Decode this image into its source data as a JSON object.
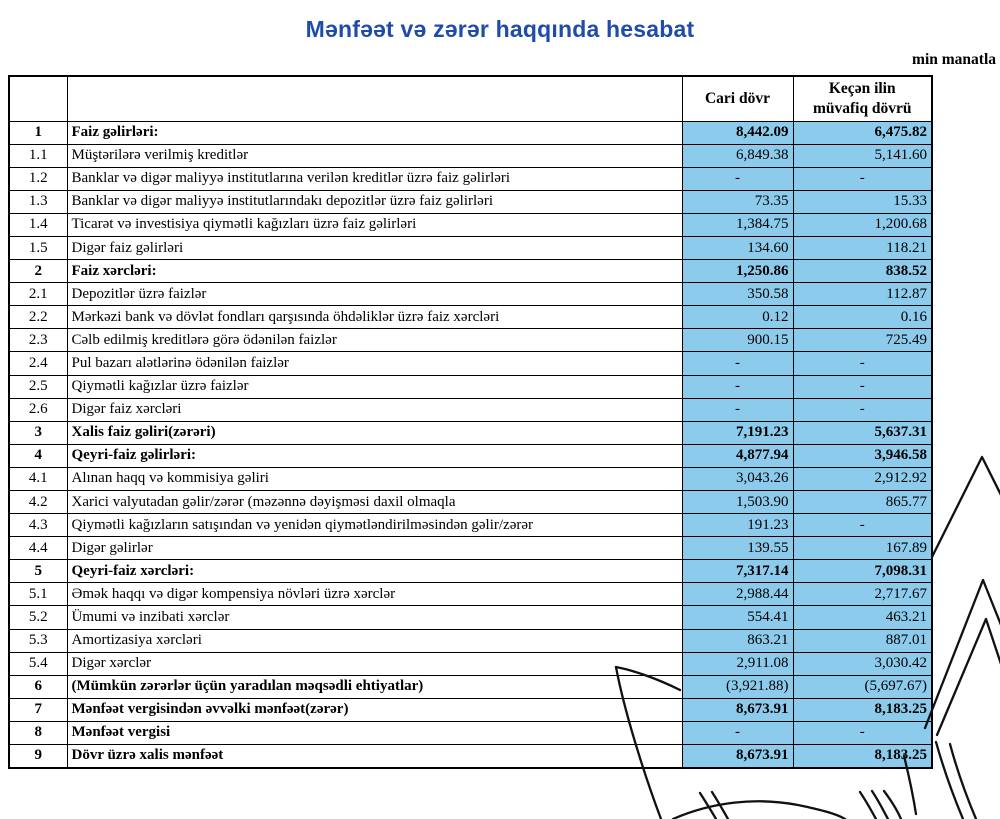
{
  "title": "Mənfəət və zərər haqqında hesabat",
  "unit_note": "min manatla",
  "colors": {
    "title_blue": "#1f4ca8",
    "cell_fill_blue": "#8dcbec",
    "border": "#000000"
  },
  "table": {
    "headers": {
      "current_period": "Cari dövr",
      "previous_period_line1": "Keçən ilin",
      "previous_period_line2": "müvafiq dövrü"
    },
    "rows": [
      {
        "num": "1",
        "label": "Faiz gəlirləri:",
        "cur": "8,442.09",
        "prev": "6,475.82",
        "section": true,
        "values_bold": true
      },
      {
        "num": "1.1",
        "label": "Müştərilərə verilmiş kreditlər",
        "cur": "6,849.38",
        "prev": "5,141.60",
        "section": false,
        "values_bold": false
      },
      {
        "num": "1.2",
        "label": "Banklar və digər maliyyə institutlarına verilən kreditlər üzrə faiz gəlirləri",
        "cur": "-",
        "prev": "-",
        "section": false,
        "values_bold": false
      },
      {
        "num": "1.3",
        "label": "Banklar və digər maliyyə institutlarındakı depozitlər üzrə faiz gəlirləri",
        "cur": "73.35",
        "prev": "15.33",
        "section": false,
        "values_bold": false
      },
      {
        "num": "1.4",
        "label": "Ticarət və investisiya qiymətli kağızları üzrə faiz gəlirləri",
        "cur": "1,384.75",
        "prev": "1,200.68",
        "section": false,
        "values_bold": false
      },
      {
        "num": "1.5",
        "label": "Digər faiz gəlirləri",
        "cur": "134.60",
        "prev": "118.21",
        "section": false,
        "values_bold": false
      },
      {
        "num": "2",
        "label": "Faiz xərcləri:",
        "cur": "1,250.86",
        "prev": "838.52",
        "section": true,
        "values_bold": true
      },
      {
        "num": "2.1",
        "label": "Depozitlər üzrə faizlər",
        "cur": "350.58",
        "prev": "112.87",
        "section": false,
        "values_bold": false
      },
      {
        "num": "2.2",
        "label": "Mərkəzi bank və dövlət fondları qarşısında öhdəliklər üzrə faiz xərcləri",
        "cur": "0.12",
        "prev": "0.16",
        "section": false,
        "values_bold": false
      },
      {
        "num": "2.3",
        "label": "Cəlb edilmiş kreditlərə görə ödənilən faizlər",
        "cur": "900.15",
        "prev": "725.49",
        "section": false,
        "values_bold": false
      },
      {
        "num": "2.4",
        "label": "Pul bazarı alətlərinə ödənilən faizlər",
        "cur": "-",
        "prev": "-",
        "section": false,
        "values_bold": false
      },
      {
        "num": "2.5",
        "label": "Qiymətli kağızlar üzrə faizlər",
        "cur": "-",
        "prev": "-",
        "section": false,
        "values_bold": false
      },
      {
        "num": "2.6",
        "label": "Digər faiz xərcləri",
        "cur": "-",
        "prev": "-",
        "section": false,
        "values_bold": false
      },
      {
        "num": "3",
        "label": "Xalis faiz gəliri(zərəri)",
        "cur": "7,191.23",
        "prev": "5,637.31",
        "section": true,
        "values_bold": true
      },
      {
        "num": "4",
        "label": "Qeyri-faiz gəlirləri:",
        "cur": "4,877.94",
        "prev": "3,946.58",
        "section": true,
        "values_bold": true
      },
      {
        "num": "4.1",
        "label": "Alınan haqq və kommisiya gəliri",
        "cur": "3,043.26",
        "prev": "2,912.92",
        "section": false,
        "values_bold": false
      },
      {
        "num": "4.2",
        "label": "Xarici valyutadan gəlir/zərər (məzənnə dəyişməsi daxil olmaqla",
        "cur": "1,503.90",
        "prev": "865.77",
        "section": false,
        "values_bold": false
      },
      {
        "num": "4.3",
        "label": "Qiymətli kağızların satışından və yenidən qiymətləndirilməsindən gəlir/zərər",
        "cur": "191.23",
        "prev": "-",
        "section": false,
        "values_bold": false
      },
      {
        "num": "4.4",
        "label": "Digər gəlirlər",
        "cur": "139.55",
        "prev": "167.89",
        "section": false,
        "values_bold": false
      },
      {
        "num": "5",
        "label": "Qeyri-faiz xərcləri:",
        "cur": "7,317.14",
        "prev": "7,098.31",
        "section": true,
        "values_bold": true
      },
      {
        "num": "5.1",
        "label": "Əmək haqqı və digər kompensiya növləri üzrə xərclər",
        "cur": "2,988.44",
        "prev": "2,717.67",
        "section": false,
        "values_bold": false
      },
      {
        "num": "5.2",
        "label": "Ümumi və inzibati xərclər",
        "cur": "554.41",
        "prev": "463.21",
        "section": false,
        "values_bold": false
      },
      {
        "num": "5.3",
        "label": "Amortizasiya xərcləri",
        "cur": "863.21",
        "prev": "887.01",
        "section": false,
        "values_bold": false
      },
      {
        "num": "5.4",
        "label": "Digər xərclər",
        "cur": "2,911.08",
        "prev": "3,030.42",
        "section": false,
        "values_bold": false
      },
      {
        "num": "6",
        "label": "(Mümkün zərərlər üçün yaradılan məqsədli ehtiyatlar)",
        "cur": "(3,921.88)",
        "prev": "(5,697.67)",
        "section": true,
        "values_bold": false
      },
      {
        "num": "7",
        "label": "Mənfəət vergisindən əvvəlki mənfəət(zərər)",
        "cur": "8,673.91",
        "prev": "8,183.25",
        "section": true,
        "values_bold": true
      },
      {
        "num": "8",
        "label": "Mənfəət vergisi",
        "cur": "-",
        "prev": "-",
        "section": true,
        "values_bold": false
      },
      {
        "num": "9",
        "label": "Dövr üzrə xalis mənfəət",
        "cur": "8,673.91",
        "prev": "8,183.25",
        "section": true,
        "values_bold": true
      }
    ]
  }
}
